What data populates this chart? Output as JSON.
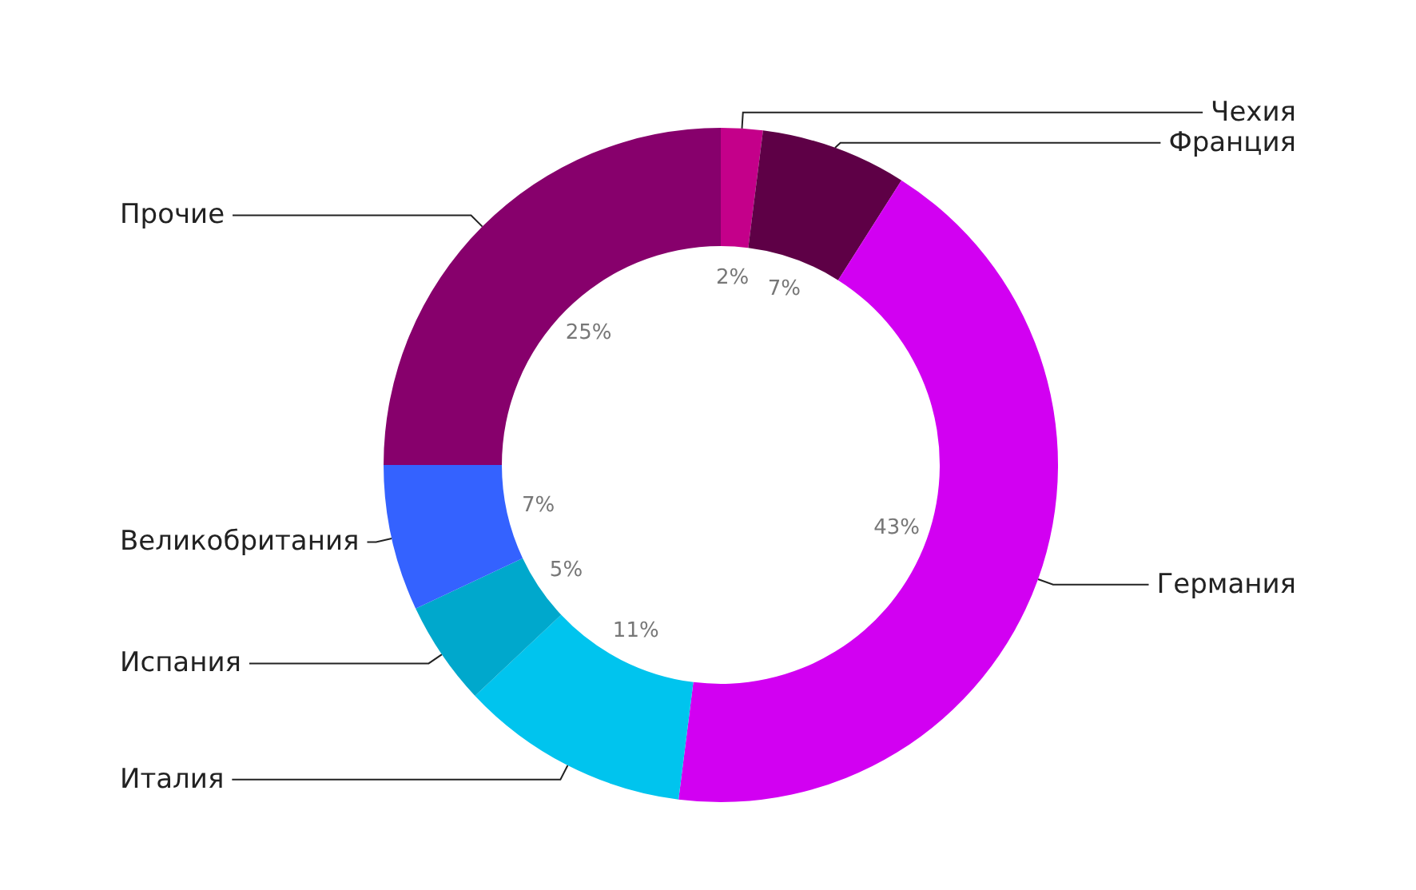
{
  "chart_data": {
    "type": "donut",
    "categories": [
      "Чехия",
      "Франция",
      "Германия",
      "Италия",
      "Испания",
      "Великобритания",
      "Прочие"
    ],
    "values": [
      2,
      7,
      43,
      11,
      5,
      7,
      25
    ],
    "value_labels": [
      "2%",
      "7%",
      "43%",
      "11%",
      "5%",
      "7%",
      "25%"
    ],
    "colors": [
      "#c4008a",
      "#5e0046",
      "#d200f2",
      "#00c4ee",
      "#00a8cc",
      "#3462ff",
      "#87006c"
    ],
    "legend": false
  }
}
